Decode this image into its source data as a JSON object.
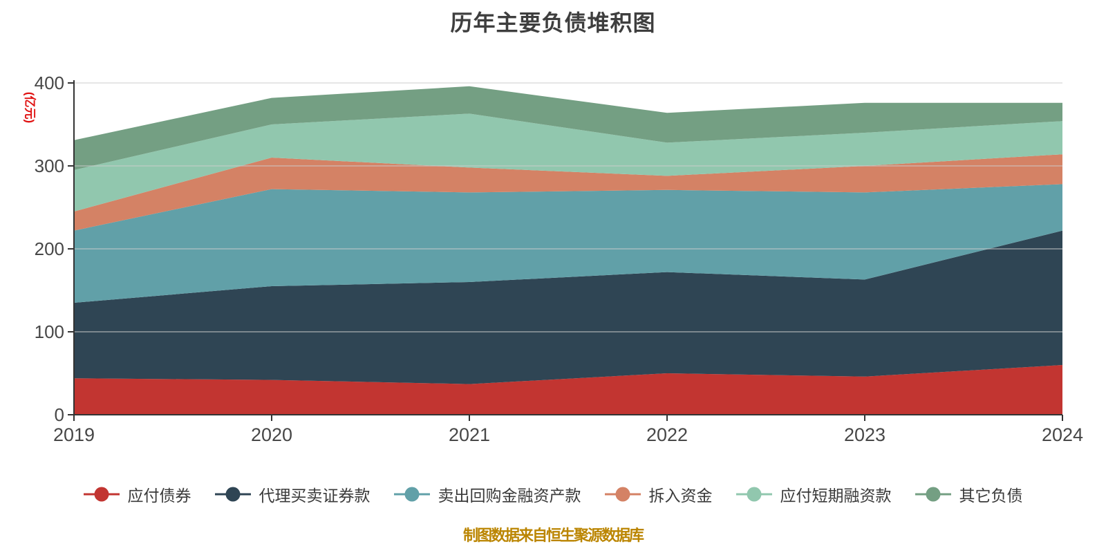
{
  "title": "历年主要负债堆积图",
  "footer": "制图数据来自恒生聚源数据库",
  "footer_color": "#bb8500",
  "y_axis": {
    "name": "(亿元)",
    "name_color": "#e01212",
    "ticks": [
      0,
      100,
      200,
      300,
      400
    ],
    "max": 400
  },
  "x_axis": {
    "labels": [
      "2019",
      "2020",
      "2021",
      "2022",
      "2023",
      "2024"
    ]
  },
  "axis_color": "#333333",
  "grid_color": "#cccccc",
  "tick_label_color": "#474747",
  "chart_data": {
    "type": "area",
    "stacked": true,
    "title": "历年主要负债堆积图",
    "ylabel": "(亿元)",
    "xlabel": "",
    "ylim": [
      0,
      400
    ],
    "grid": true,
    "legend_position": "bottom",
    "categories": [
      "2019",
      "2020",
      "2021",
      "2022",
      "2023",
      "2024"
    ],
    "series": [
      {
        "name": "应付债券",
        "color": "#c23531",
        "values": [
          44,
          42,
          37,
          50,
          46,
          60
        ]
      },
      {
        "name": "代理买卖证券款",
        "color": "#2f4554",
        "values": [
          91,
          113,
          123,
          122,
          117,
          162
        ]
      },
      {
        "name": "卖出回购金融资产款",
        "color": "#61a0a8",
        "values": [
          87,
          117,
          108,
          99,
          105,
          56
        ]
      },
      {
        "name": "拆入资金",
        "color": "#d48265",
        "values": [
          23,
          38,
          30,
          17,
          32,
          36
        ]
      },
      {
        "name": "应付短期融资款",
        "color": "#91c7ae",
        "values": [
          50,
          40,
          65,
          40,
          40,
          40
        ]
      },
      {
        "name": "其它负债",
        "color": "#749f83",
        "values": [
          36,
          32,
          33,
          36,
          36,
          22
        ]
      }
    ],
    "stacked_totals": [
      331,
      382,
      396,
      364,
      376,
      376
    ]
  }
}
